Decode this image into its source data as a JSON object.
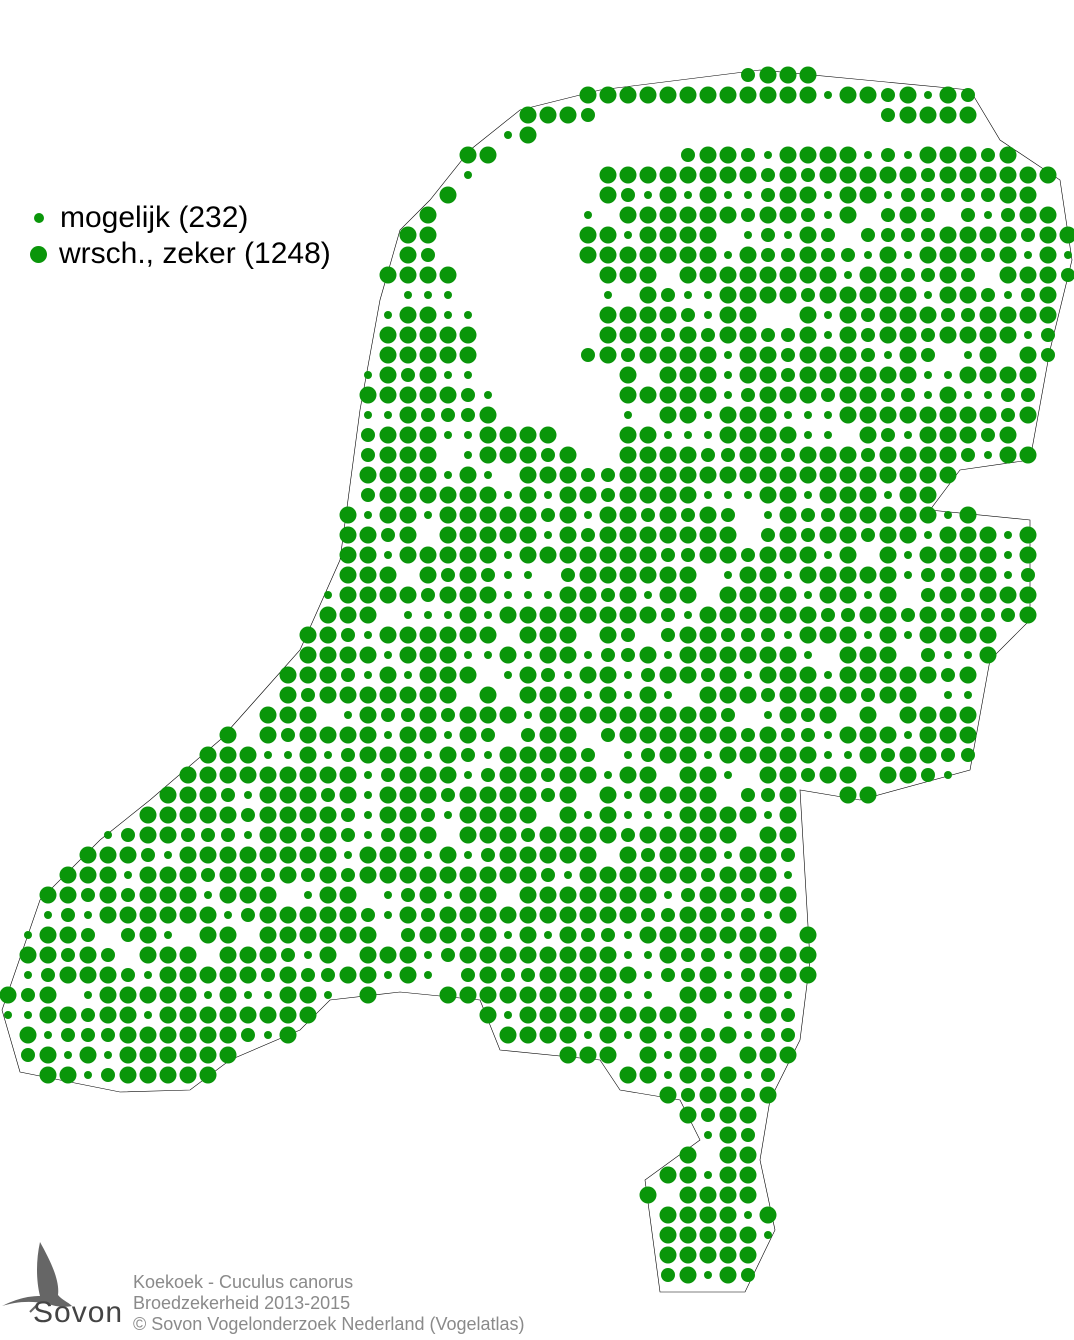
{
  "map": {
    "dot_color": "#0a960a",
    "border_color": "#000000",
    "grid": "atlas squares",
    "legend": [
      {
        "label": "mogelijk (232)",
        "category": "mogelijk",
        "count": 232,
        "symbol": "small-dot"
      },
      {
        "label": "wrsch., zeker (1248)",
        "category": "wrsch., zeker",
        "count": 1248,
        "symbol": "large-dot"
      }
    ]
  },
  "caption": {
    "species": "Koekoek - Cuculus canorus",
    "subject": "Broedzekerheid 2013-2015",
    "copyright": "© Sovon Vogelonderzoek Nederland (Vogelatlas)"
  },
  "logo": {
    "text": "Sovon"
  }
}
